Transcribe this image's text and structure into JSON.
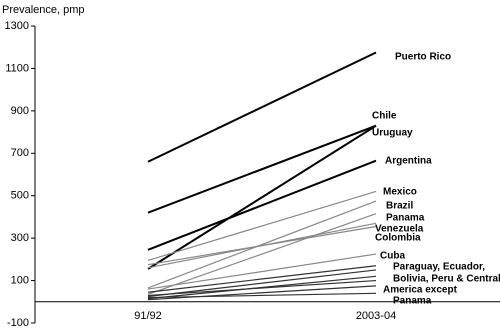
{
  "chart_data": {
    "type": "slope",
    "title": "Prevalence, pmp",
    "categories": [
      "91/92",
      "2003-04"
    ],
    "ylim": [
      -100,
      1300
    ],
    "yticks": [
      -100,
      100,
      300,
      500,
      700,
      900,
      1100,
      1300
    ],
    "series": [
      {
        "name": "Puerto Rico",
        "color": "#000000",
        "values": [
          660,
          1175
        ]
      },
      {
        "name": "Chile",
        "color": "#000000",
        "values": [
          155,
          830
        ]
      },
      {
        "name": "Uruguay",
        "color": "#000000",
        "values": [
          420,
          830
        ]
      },
      {
        "name": "Argentina",
        "color": "#000000",
        "values": [
          245,
          665
        ]
      },
      {
        "name": "Mexico",
        "color": "#888888",
        "values": [
          195,
          520
        ]
      },
      {
        "name": "Brazil",
        "color": "#888888",
        "values": [
          65,
          475
        ]
      },
      {
        "name": "Panama",
        "color": "#888888",
        "values": [
          35,
          415
        ]
      },
      {
        "name": "Venezuela",
        "color": "#888888",
        "values": [
          160,
          370
        ]
      },
      {
        "name": "Colombia",
        "color": "#888888",
        "values": [
          175,
          355
        ]
      },
      {
        "name": "Cuba",
        "color": "#888888",
        "values": [
          60,
          225
        ]
      },
      {
        "color": "#333333",
        "values": [
          45,
          170
        ]
      },
      {
        "color": "#333333",
        "values": [
          25,
          150
        ]
      },
      {
        "color": "#333333",
        "values": [
          15,
          120
        ]
      },
      {
        "color": "#333333",
        "values": [
          30,
          100
        ]
      },
      {
        "color": "#333333",
        "values": [
          10,
          75
        ]
      },
      {
        "color": "#333333",
        "values": [
          20,
          40
        ]
      }
    ],
    "group_label": [
      "Paraguay, Ecuador,",
      "Bolivia, Peru & Central",
      "America except",
      "Panama"
    ]
  }
}
